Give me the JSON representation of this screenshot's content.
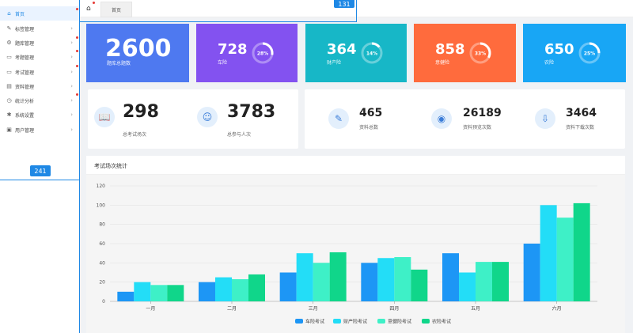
{
  "sidebar": {
    "items": [
      {
        "label": "首页",
        "icon": "home-icon",
        "active": true
      },
      {
        "label": "标签管理",
        "icon": "tag-icon"
      },
      {
        "label": "题库管理",
        "icon": "gear-icon"
      },
      {
        "label": "考题管理",
        "icon": "monitor-icon"
      },
      {
        "label": "考试管理",
        "icon": "monitor-icon"
      },
      {
        "label": "资料管理",
        "icon": "document-icon"
      },
      {
        "label": "统计分析",
        "icon": "clock-icon"
      },
      {
        "label": "系统设置",
        "icon": "wrench-icon"
      },
      {
        "label": "用户管理",
        "icon": "user-card-icon"
      }
    ],
    "marker": "241"
  },
  "topbar": {
    "tab_label": "首页",
    "marker": "131"
  },
  "stats": [
    {
      "value": "2600",
      "label": "题库总题数",
      "color": "#4e79f0"
    },
    {
      "value": "728",
      "label": "车险",
      "percent": "28%",
      "fraction": 0.28,
      "color": "#8352f0"
    },
    {
      "value": "364",
      "label": "财产险",
      "percent": "14%",
      "fraction": 0.14,
      "color": "#17b7c7"
    },
    {
      "value": "858",
      "label": "意健险",
      "percent": "33%",
      "fraction": 0.33,
      "color": "#ff6b3d"
    },
    {
      "value": "650",
      "label": "农险",
      "percent": "25%",
      "fraction": 0.25,
      "color": "#18a6f5"
    }
  ],
  "exam": {
    "total_exams": {
      "value": "298",
      "label": "总考试场次"
    },
    "total_people": {
      "value": "3783",
      "label": "总参与人次"
    }
  },
  "materials": {
    "total": {
      "value": "465",
      "label": "资料总数"
    },
    "views": {
      "value": "26189",
      "label": "资料预览次数"
    },
    "downloads": {
      "value": "3464",
      "label": "资料下载次数"
    }
  },
  "chart_section": {
    "title": "考试场次统计"
  },
  "chart_data": {
    "type": "bar",
    "categories": [
      "一月",
      "二月",
      "三月",
      "四月",
      "五月",
      "六月"
    ],
    "series": [
      {
        "name": "车险考试",
        "color": "#1d96f5",
        "values": [
          10,
          20,
          30,
          40,
          50,
          60
        ]
      },
      {
        "name": "财产险考试",
        "color": "#23ddf7",
        "values": [
          20,
          25,
          50,
          45,
          30,
          100
        ]
      },
      {
        "name": "意健险考试",
        "color": "#3ef0c7",
        "values": [
          17,
          23,
          40,
          46,
          41,
          87
        ]
      },
      {
        "name": "农险考试",
        "color": "#10d68a",
        "values": [
          17,
          28,
          51,
          33,
          41,
          102
        ]
      }
    ],
    "yticks": [
      "0",
      "20",
      "40",
      "60",
      "80",
      "100",
      "120"
    ],
    "ylim": [
      0,
      120
    ],
    "legend": "bottom-center",
    "grid": true
  }
}
